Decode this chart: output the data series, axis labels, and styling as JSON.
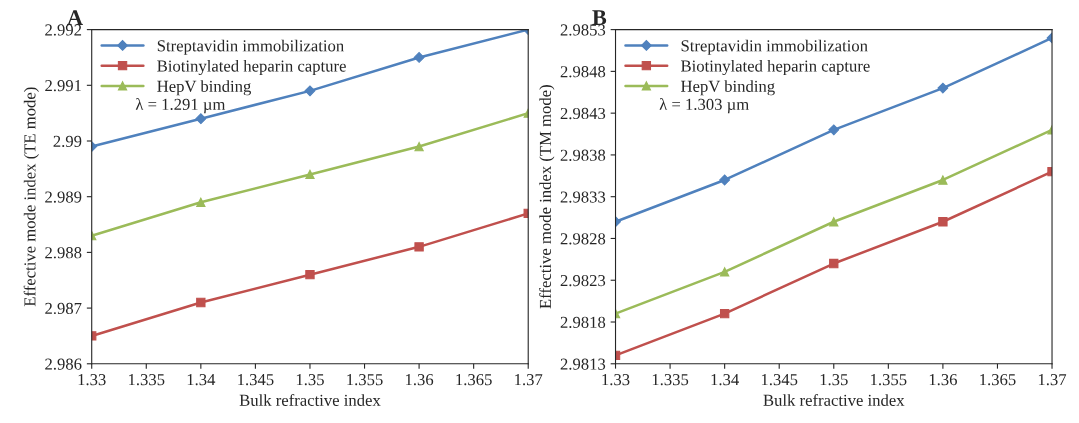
{
  "chart_data": [
    {
      "type": "line",
      "title": "A",
      "xlabel": "Bulk refractive index",
      "ylabel": "Effective mode index (TE mode)",
      "x": [
        1.33,
        1.34,
        1.35,
        1.36,
        1.37
      ],
      "series": [
        {
          "name": "Streptavidin immobilization",
          "color": "#4f81bd",
          "marker": "diamond",
          "values": [
            2.9899,
            2.9904,
            2.9909,
            2.9915,
            2.992
          ]
        },
        {
          "name": "Biotinylated heparin capture",
          "color": "#c0504d",
          "marker": "square",
          "values": [
            2.9865,
            2.9871,
            2.9876,
            2.9881,
            2.9887
          ]
        },
        {
          "name": "HepV binding",
          "color": "#9bbb59",
          "marker": "triangle",
          "values": [
            2.9883,
            2.9889,
            2.9894,
            2.9899,
            2.9905
          ]
        }
      ],
      "annotations": [
        "λ = 1.291 µm"
      ],
      "xlim": [
        1.33,
        1.37
      ],
      "xticks": [
        1.33,
        1.335,
        1.34,
        1.345,
        1.35,
        1.355,
        1.36,
        1.365,
        1.37
      ],
      "ylim": [
        2.986,
        2.992
      ],
      "yticks": [
        2.986,
        2.987,
        2.988,
        2.989,
        2.99,
        2.991,
        2.992
      ],
      "grid": false,
      "legend": "top left",
      "line_style": "solid"
    },
    {
      "type": "line",
      "title": "B",
      "xlabel": "Bulk refractive index",
      "ylabel": "Effective mode index (TM mode)",
      "x": [
        1.33,
        1.34,
        1.35,
        1.36,
        1.37
      ],
      "series": [
        {
          "name": "Streptavidin immobilization",
          "color": "#4f81bd",
          "marker": "diamond",
          "values": [
            2.983,
            2.9835,
            2.9841,
            2.9846,
            2.9852
          ]
        },
        {
          "name": "Biotinylated heparin capture",
          "color": "#c0504d",
          "marker": "square",
          "values": [
            2.9814,
            2.9819,
            2.9825,
            2.983,
            2.9836
          ]
        },
        {
          "name": "HepV binding",
          "color": "#9bbb59",
          "marker": "triangle",
          "values": [
            2.9819,
            2.9824,
            2.983,
            2.9835,
            2.9841
          ]
        }
      ],
      "annotations": [
        "λ = 1.303 µm"
      ],
      "xlim": [
        1.33,
        1.37
      ],
      "xticks": [
        1.33,
        1.335,
        1.34,
        1.345,
        1.35,
        1.355,
        1.36,
        1.365,
        1.37
      ],
      "ylim": [
        2.9813,
        2.9853
      ],
      "yticks": [
        2.9813,
        2.9818,
        2.9823,
        2.9828,
        2.9833,
        2.9838,
        2.9843,
        2.9848,
        2.9853
      ],
      "grid": false,
      "legend": "top left",
      "line_style": "solid"
    }
  ]
}
